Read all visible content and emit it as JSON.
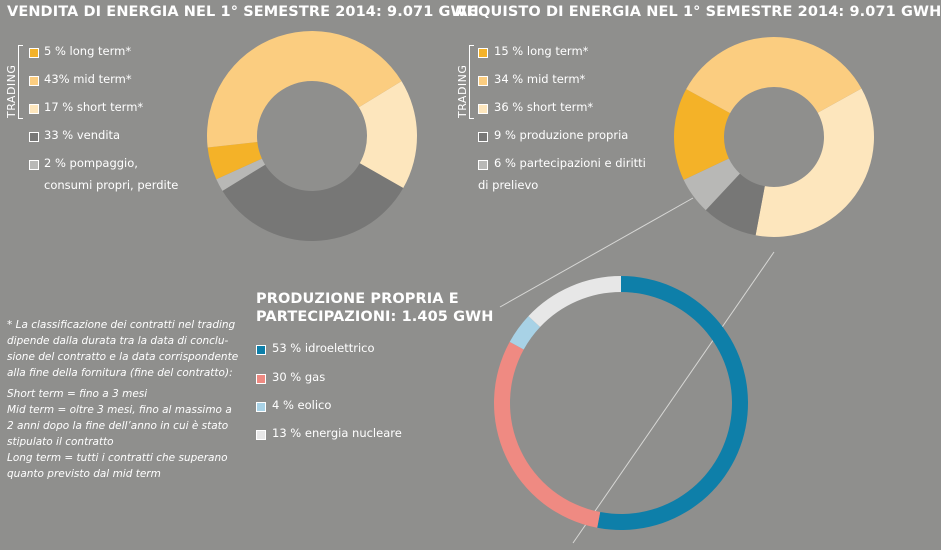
{
  "colors": {
    "long_term": "#f4b228",
    "mid_term": "#fbcd80",
    "short_term": "#fde6bd",
    "vendita": "#777776",
    "pompaggio": "#b8b8b6",
    "produzione": "#777776",
    "partecipazioni": "#b8b8b6",
    "idro": "#0e7fa9",
    "gas": "#ef8a82",
    "eolico": "#a8d2e6",
    "nucleare": "#e7e7e7"
  },
  "chart_data": [
    {
      "type": "pie",
      "title": "VENDITA DI ENERGIA NEL 1° SEMESTRE 2014: 9.071 GWH",
      "group_label": "TRADING",
      "slices": [
        {
          "label": "5 % long term*",
          "value": 5,
          "color": "#f4b228"
        },
        {
          "label": "43% mid term*",
          "value": 43,
          "color": "#fbcd80"
        },
        {
          "label": "17 % short term*",
          "value": 17,
          "color": "#fde6bd"
        },
        {
          "label": "33 % vendita",
          "value": 33,
          "color": "#777776"
        },
        {
          "label": "2 % pompaggio, consumi propri, perdite",
          "value": 2,
          "color": "#b8b8b6"
        }
      ]
    },
    {
      "type": "pie",
      "title": "ACQUISTO DI ENERGIA NEL 1° SEMESTRE 2014: 9.071 GWH",
      "group_label": "TRADING",
      "slices": [
        {
          "label": "15 % long term*",
          "value": 15,
          "color": "#f4b228"
        },
        {
          "label": "34 % mid term*",
          "value": 34,
          "color": "#fbcd80"
        },
        {
          "label": "36 % short term*",
          "value": 36,
          "color": "#fde6bd"
        },
        {
          "label": "9 % produzione propria",
          "value": 9,
          "color": "#777776"
        },
        {
          "label": "6 % partecipazioni e diritti di prelievo",
          "value": 6,
          "color": "#b8b8b6"
        }
      ]
    },
    {
      "type": "pie",
      "title": "PRODUZIONE PROPRIA E PARTECIPAZIONI: 1.405 GWH",
      "slices": [
        {
          "label": "53 % idroelettrico",
          "value": 53,
          "color": "#0e7fa9"
        },
        {
          "label": "30 % gas",
          "value": 30,
          "color": "#ef8a82"
        },
        {
          "label": "4 % eolico",
          "value": 4,
          "color": "#a8d2e6"
        },
        {
          "label": "13 % energia nucleare",
          "value": 13,
          "color": "#e7e7e7"
        }
      ]
    }
  ],
  "text": {
    "vendita_title": "VENDITA DI ENERGIA NEL 1° SEMESTRE 2014: 9.071 GWH",
    "acquisto_title": "ACQUISTO DI ENERGIA NEL 1° SEMESTRE 2014: 9.071 GWH",
    "produzione_title_1": "PRODUZIONE PROPRIA E",
    "produzione_title_2": "PARTECIPAZIONI: 1.405 GWH",
    "trading": "TRADING",
    "v_long": "5 % long term*",
    "v_mid": "43% mid term*",
    "v_short": "17 % short term*",
    "v_vendita": "33 % vendita",
    "v_pomp_1": "2 % pompaggio,",
    "v_pomp_2": "consumi propri, perdite",
    "a_long": "15 % long term*",
    "a_mid": "34 % mid term*",
    "a_short": "36 % short term*",
    "a_prod": "9 % produzione propria",
    "a_part_1": "6 % partecipazioni e diritti",
    "a_part_2": "di prelievo",
    "p_idro": "53 % idroelettrico",
    "p_gas": "30 % gas",
    "p_eolico": "4 % eolico",
    "p_nucleare": "13 % energia nucleare",
    "note": [
      "* La classificazione dei contratti nel trading",
      "dipende dalla durata tra la data di conclu-",
      "sione del contratto e la data corrispondente",
      "alla fine della fornitura (fine del contratto):",
      "Short term = fino a 3 mesi",
      "Mid term = oltre 3 mesi, fino al massimo a",
      "2 anni dopo la fine dell’anno in cui è stato",
      "stipulato il contratto",
      "Long term = tutti i contratti che superano",
      "quanto previsto dal mid term"
    ]
  }
}
